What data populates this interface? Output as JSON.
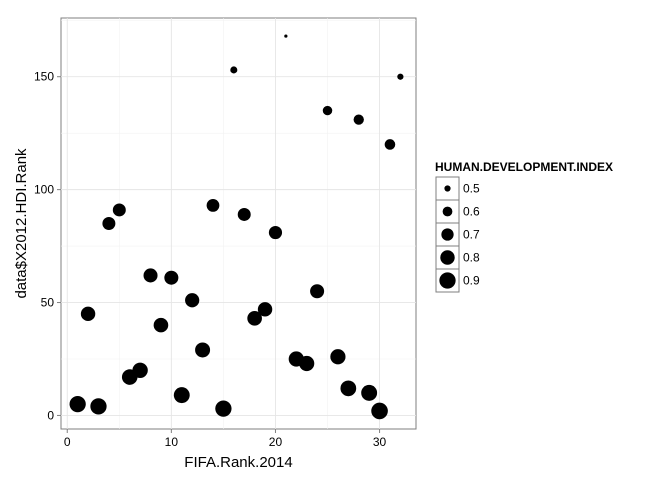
{
  "chart_data": {
    "type": "scatter",
    "xlabel": "FIFA.Rank.2014",
    "ylabel": "data$X2012.HDI.Rank",
    "xlim": [
      -0.6,
      33.5
    ],
    "ylim": [
      -6,
      176
    ],
    "x_ticks": [
      0,
      10,
      20,
      30
    ],
    "y_ticks": [
      0,
      50,
      100,
      150
    ],
    "grid": true,
    "legend": {
      "title": "HUMAN.DEVELOPMENT.INDEX",
      "position": "right",
      "entries": [
        {
          "label": "0.5",
          "value": 0.5
        },
        {
          "label": "0.6",
          "value": 0.6
        },
        {
          "label": "0.7",
          "value": 0.7
        },
        {
          "label": "0.8",
          "value": 0.8
        },
        {
          "label": "0.9",
          "value": 0.9
        }
      ]
    },
    "size_variable": "HUMAN.DEVELOPMENT.INDEX",
    "size_range": [
      0.45,
      0.92
    ],
    "points": [
      {
        "x": 1,
        "y": 5,
        "size": 0.9
      },
      {
        "x": 2,
        "y": 45,
        "size": 0.8
      },
      {
        "x": 3,
        "y": 4,
        "size": 0.9
      },
      {
        "x": 4,
        "y": 85,
        "size": 0.73
      },
      {
        "x": 5,
        "y": 91,
        "size": 0.73
      },
      {
        "x": 6,
        "y": 17,
        "size": 0.86
      },
      {
        "x": 7,
        "y": 20,
        "size": 0.85
      },
      {
        "x": 8,
        "y": 62,
        "size": 0.78
      },
      {
        "x": 9,
        "y": 40,
        "size": 0.81
      },
      {
        "x": 10,
        "y": 61,
        "size": 0.78
      },
      {
        "x": 11,
        "y": 9,
        "size": 0.88
      },
      {
        "x": 12,
        "y": 51,
        "size": 0.79
      },
      {
        "x": 13,
        "y": 29,
        "size": 0.83
      },
      {
        "x": 14,
        "y": 93,
        "size": 0.72
      },
      {
        "x": 15,
        "y": 3,
        "size": 0.9
      },
      {
        "x": 16,
        "y": 153,
        "size": 0.52
      },
      {
        "x": 17,
        "y": 89,
        "size": 0.73
      },
      {
        "x": 18,
        "y": 43,
        "size": 0.81
      },
      {
        "x": 19,
        "y": 47,
        "size": 0.8
      },
      {
        "x": 20,
        "y": 81,
        "size": 0.74
      },
      {
        "x": 21,
        "y": 168,
        "size": 0.45
      },
      {
        "x": 22,
        "y": 25,
        "size": 0.84
      },
      {
        "x": 23,
        "y": 23,
        "size": 0.84
      },
      {
        "x": 24,
        "y": 55,
        "size": 0.78
      },
      {
        "x": 25,
        "y": 135,
        "size": 0.59
      },
      {
        "x": 26,
        "y": 26,
        "size": 0.84
      },
      {
        "x": 27,
        "y": 12,
        "size": 0.87
      },
      {
        "x": 28,
        "y": 131,
        "size": 0.62
      },
      {
        "x": 29,
        "y": 10,
        "size": 0.88
      },
      {
        "x": 30,
        "y": 2,
        "size": 0.92
      },
      {
        "x": 31,
        "y": 120,
        "size": 0.63
      },
      {
        "x": 32,
        "y": 150,
        "size": 0.5
      }
    ]
  }
}
